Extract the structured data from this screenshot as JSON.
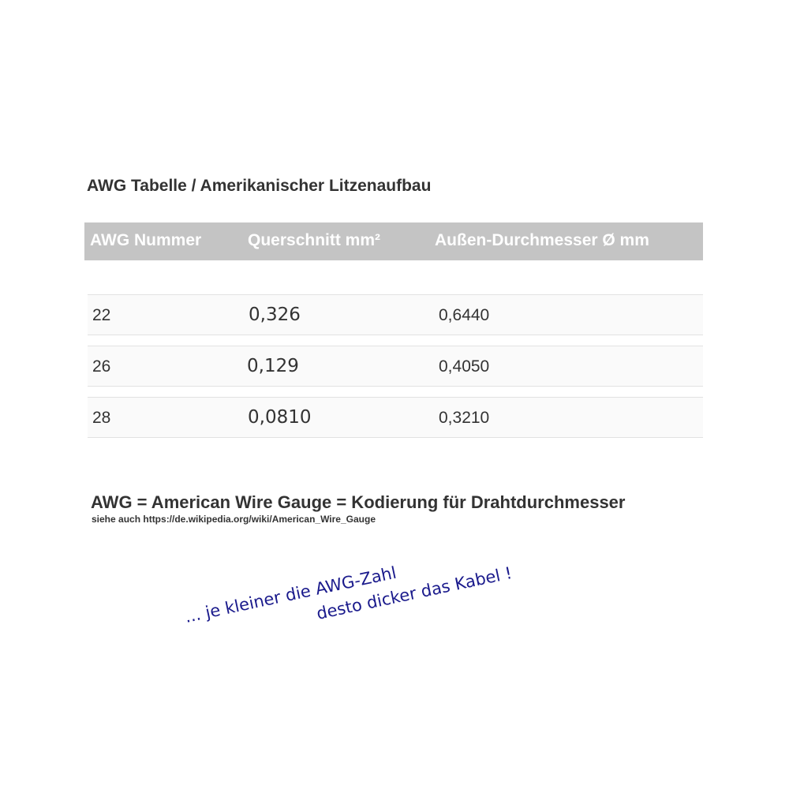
{
  "title": "AWG Tabelle / Amerikanischer Litzenaufbau",
  "table": {
    "headers": [
      "AWG Nummer",
      "Querschnitt mm²",
      "Außen-Durchmesser Ø mm"
    ],
    "rows": [
      [
        "22",
        "0,326",
        "0,6440"
      ],
      [
        "26",
        "0,129",
        "0,4050"
      ],
      [
        "28",
        "0,0810",
        "0,3210"
      ]
    ]
  },
  "definition": "AWG = American Wire Gauge = Kodierung für Drahtdurchmesser",
  "see_also": "siehe auch https://de.wikipedia.org/wiki/American_Wire_Gauge",
  "note": {
    "line1": "... je kleiner die AWG-Zahl",
    "line2": "desto dicker das Kabel !"
  },
  "colors": {
    "header_bg": "#c4c4c4",
    "note_text": "#1a1a8c"
  }
}
